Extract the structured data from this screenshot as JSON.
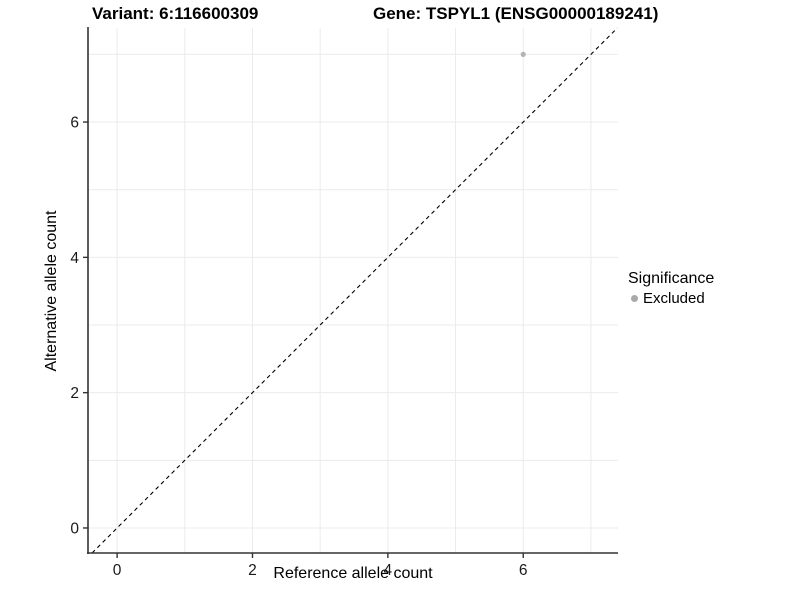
{
  "figure": {
    "title_left": "Variant: 6:116600309",
    "title_right": "Gene: TSPYL1 (ENSG00000189241)"
  },
  "chart_data": {
    "type": "scatter",
    "title": "Variant: 6:116600309  Gene: TSPYL1 (ENSG00000189241)",
    "xlabel": "Reference allele count",
    "ylabel": "Alternative allele count",
    "xlim": [
      -0.43,
      7.4
    ],
    "ylim": [
      -0.37,
      7.39
    ],
    "x_ticks": [
      0,
      2,
      4,
      6
    ],
    "y_ticks": [
      0,
      2,
      4,
      6
    ],
    "x_grid": [
      0,
      1,
      2,
      3,
      4,
      5,
      6,
      7
    ],
    "y_grid": [
      0,
      1,
      2,
      3,
      4,
      5,
      6,
      7
    ],
    "grid": true,
    "reference_line": {
      "name": "identity-line",
      "style": "dashed",
      "from": [
        -0.37,
        -0.37
      ],
      "to": [
        7.39,
        7.39
      ],
      "color": "#000000"
    },
    "series": [
      {
        "name": "Excluded",
        "color": "#b4b4b4",
        "points": [
          [
            6,
            7
          ]
        ]
      }
    ],
    "legend": {
      "title": "Significance",
      "position": "right",
      "entries": [
        {
          "label": "Excluded",
          "color": "#a9a9a9"
        }
      ]
    },
    "colors": {
      "grid": "#ebebeb",
      "axis": "#333333",
      "tick_label": "#1a1a1a",
      "background": "#ffffff"
    }
  }
}
